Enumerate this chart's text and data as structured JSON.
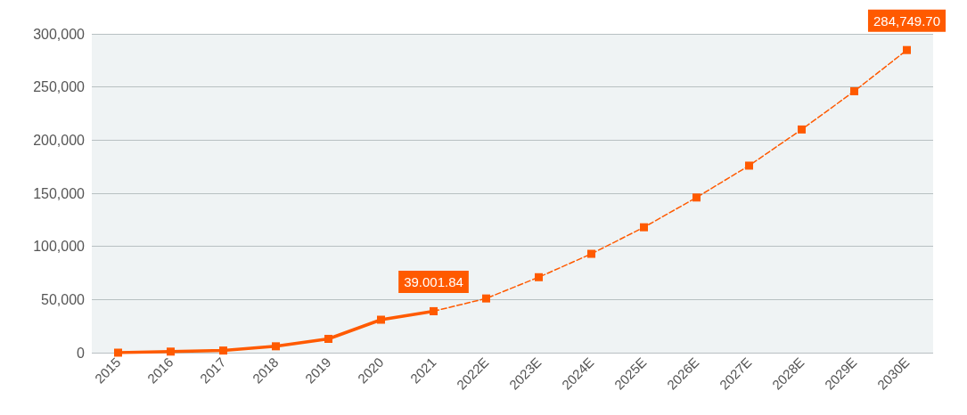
{
  "chart_data": {
    "type": "line",
    "categories": [
      "2015",
      "2016",
      "2017",
      "2018",
      "2019",
      "2020",
      "2021",
      "2022E",
      "2023E",
      "2024E",
      "2025E",
      "2026E",
      "2027E",
      "2028E",
      "2029E",
      "2030E"
    ],
    "series": [
      {
        "color": "#ff5a00",
        "line_style": "solid",
        "values": [
          0,
          1000,
          2000,
          6000,
          13000,
          31000,
          39001.84,
          null,
          null,
          null,
          null,
          null,
          null,
          null,
          null,
          null
        ],
        "value_labels": [
          null,
          null,
          null,
          null,
          null,
          null,
          "39.001.84",
          null,
          null,
          null,
          null,
          null,
          null,
          null,
          null,
          null
        ]
      },
      {
        "color": "#ff5a00",
        "line_style": "dashed",
        "values": [
          null,
          null,
          null,
          null,
          null,
          null,
          39001.84,
          51000,
          71000,
          93000,
          118000,
          146000,
          176000,
          210000,
          246000,
          284749.7
        ],
        "value_labels": [
          null,
          null,
          null,
          null,
          null,
          null,
          null,
          null,
          null,
          null,
          null,
          null,
          null,
          null,
          null,
          "284,749.70"
        ]
      }
    ],
    "ylim": [
      0,
      300000
    ],
    "yticks": [
      {
        "value": 0,
        "label": "0"
      },
      {
        "value": 50000,
        "label": "50,000"
      },
      {
        "value": 100000,
        "label": "100,000"
      },
      {
        "value": 150000,
        "label": "150,000"
      },
      {
        "value": 200000,
        "label": "200,000"
      },
      {
        "value": 250000,
        "label": "250,000"
      },
      {
        "value": 300000,
        "label": "300,000"
      }
    ],
    "grid": "y",
    "marker": "square"
  }
}
